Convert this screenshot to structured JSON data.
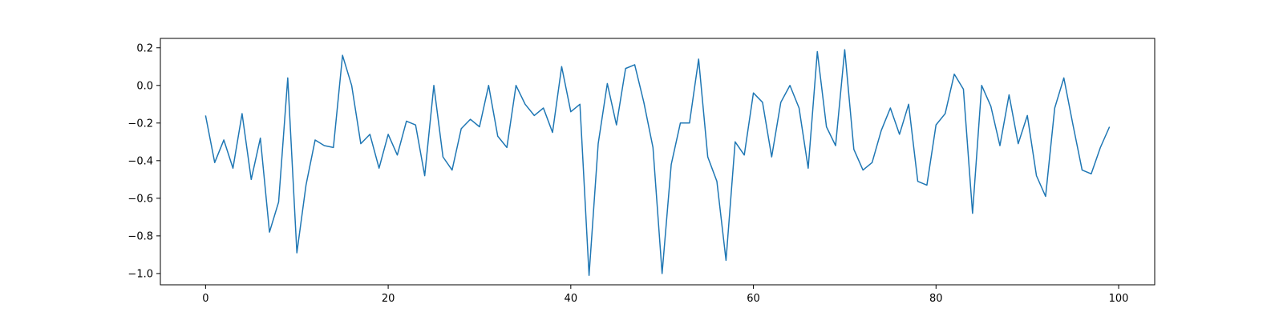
{
  "chart_data": {
    "type": "line",
    "title": "",
    "xlabel": "",
    "ylabel": "",
    "xlim": [
      -4.95,
      103.95
    ],
    "ylim": [
      -1.06,
      0.25
    ],
    "grid": false,
    "legend": null,
    "x_ticks": [
      0,
      20,
      40,
      60,
      80,
      100
    ],
    "x_tick_labels": [
      "0",
      "20",
      "40",
      "60",
      "80",
      "100"
    ],
    "y_ticks": [
      -1.0,
      -0.8,
      -0.6,
      -0.4,
      -0.2,
      0.0,
      0.2
    ],
    "y_tick_labels": [
      "−1.0",
      "−0.8",
      "−0.6",
      "−0.4",
      "−0.2",
      "0.0",
      "0.2"
    ],
    "series": [
      {
        "color": "#1f77b4",
        "x_start": 0,
        "x_step": 1,
        "values": [
          -0.16,
          -0.41,
          -0.29,
          -0.44,
          -0.15,
          -0.5,
          -0.28,
          -0.78,
          -0.62,
          0.04,
          -0.89,
          -0.53,
          -0.29,
          -0.32,
          -0.33,
          0.16,
          0.0,
          -0.31,
          -0.26,
          -0.44,
          -0.26,
          -0.37,
          -0.19,
          -0.21,
          -0.48,
          0.0,
          -0.38,
          -0.45,
          -0.23,
          -0.18,
          -0.22,
          0.0,
          -0.27,
          -0.33,
          0.0,
          -0.1,
          -0.16,
          -0.12,
          -0.25,
          0.1,
          -0.14,
          -0.1,
          -1.01,
          -0.31,
          0.01,
          -0.21,
          0.09,
          0.11,
          -0.09,
          -0.33,
          -1.0,
          -0.42,
          -0.2,
          -0.2,
          0.14,
          -0.38,
          -0.51,
          -0.93,
          -0.3,
          -0.37,
          -0.04,
          -0.09,
          -0.38,
          -0.09,
          0.0,
          -0.12,
          -0.44,
          0.18,
          -0.22,
          -0.32,
          0.19,
          -0.34,
          -0.45,
          -0.41,
          -0.24,
          -0.12,
          -0.26,
          -0.1,
          -0.51,
          -0.53,
          -0.21,
          -0.15,
          0.06,
          -0.02,
          -0.68,
          0.0,
          -0.11,
          -0.32,
          -0.05,
          -0.31,
          -0.16,
          -0.48,
          -0.59,
          -0.12,
          0.04,
          -0.21,
          -0.45,
          -0.47,
          -0.33,
          -0.22
        ]
      }
    ]
  }
}
